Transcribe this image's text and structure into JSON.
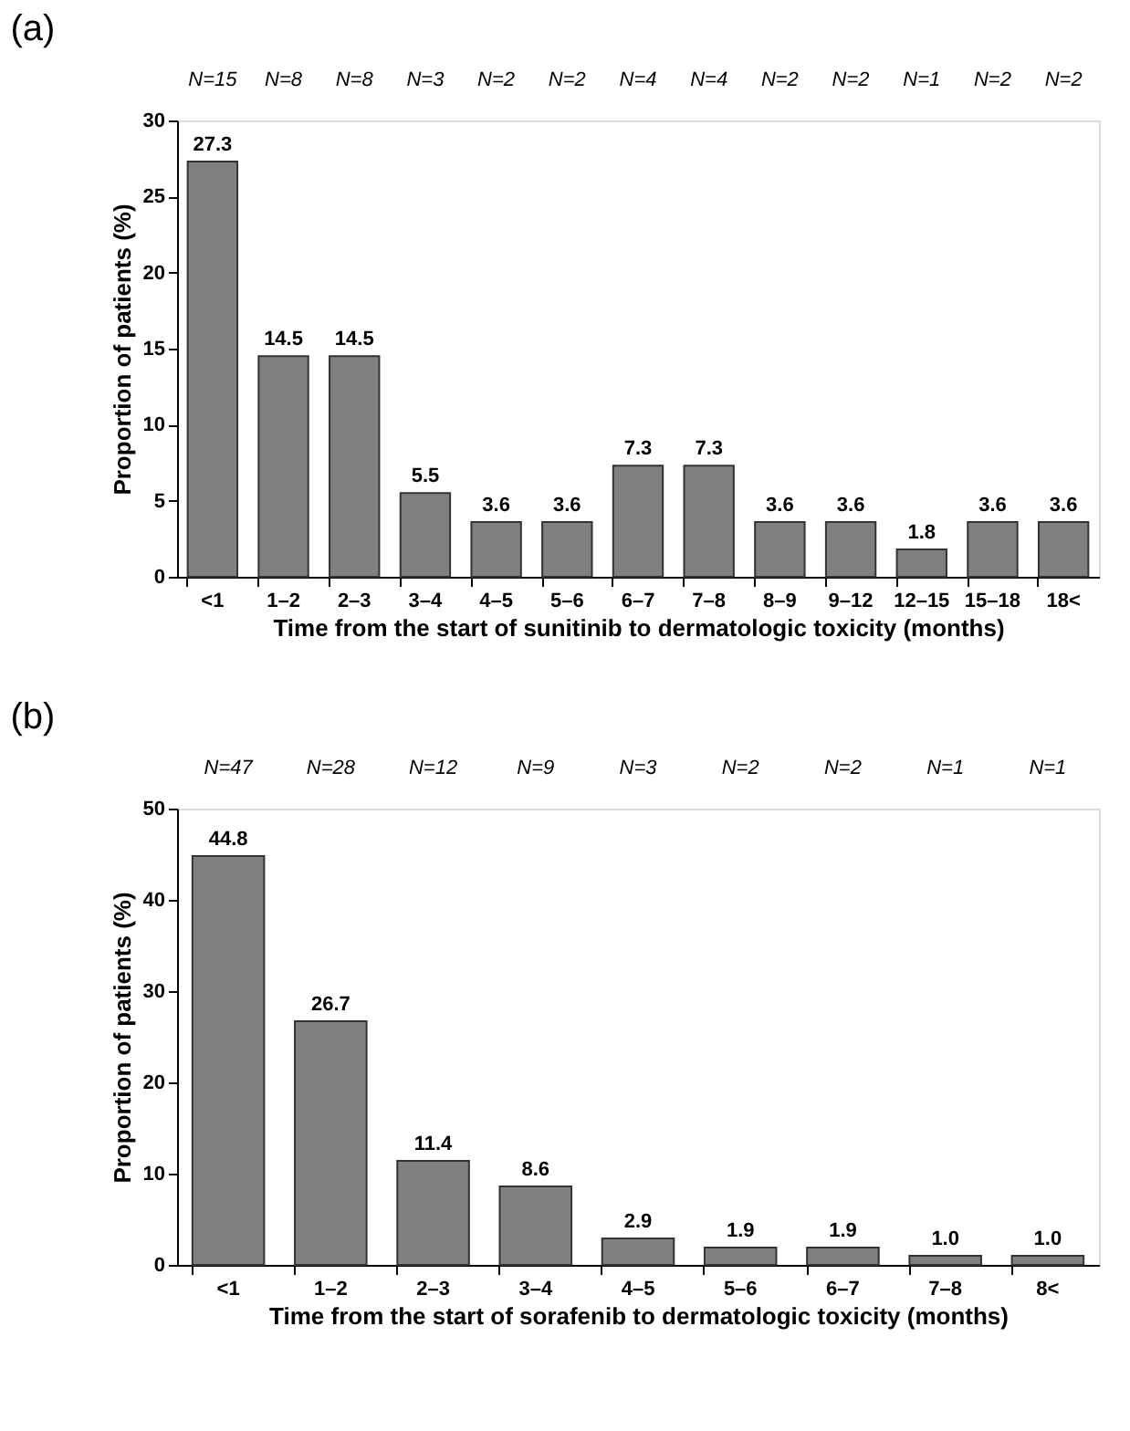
{
  "chart_data": [
    {
      "type": "bar",
      "title": "(a)",
      "xlabel": "Time from the start of sunitinib to dermatologic toxicity (months)",
      "ylabel": "Proportion of patients (%)",
      "categories": [
        "<1",
        "1–2",
        "2–3",
        "3–4",
        "4–5",
        "5–6",
        "6–7",
        "7–8",
        "8–9",
        "9–12",
        "12–15",
        "15–18",
        "18<"
      ],
      "values": [
        27.3,
        14.5,
        14.5,
        5.5,
        3.6,
        3.6,
        7.3,
        7.3,
        3.6,
        3.6,
        1.8,
        3.6,
        3.6
      ],
      "color": "#808080",
      "ylim": [
        0,
        30
      ],
      "yticks": [
        0,
        5,
        10,
        15,
        20,
        25,
        30
      ],
      "data_labels": true,
      "annotations": [
        "N=15",
        "N=8",
        "N=8",
        "N=3",
        "N=2",
        "N=2",
        "N=4",
        "N=4",
        "N=2",
        "N=2",
        "N=1",
        "N=2",
        "N=2"
      ]
    },
    {
      "type": "bar",
      "title": "(b)",
      "xlabel": "Time from the start of sorafenib to dermatologic toxicity (months)",
      "ylabel": "Proportion of patients (%)",
      "categories": [
        "<1",
        "1–2",
        "2–3",
        "3–4",
        "4–5",
        "5–6",
        "6–7",
        "7–8",
        "8<"
      ],
      "values": [
        44.8,
        26.7,
        11.4,
        8.6,
        2.9,
        1.9,
        1.9,
        1.0,
        1.0
      ],
      "color": "#808080",
      "value_labels": [
        "44.8",
        "26.7",
        "11.4",
        "8.6",
        "2.9",
        "1.9",
        "1.9",
        "1.0",
        "1.0"
      ],
      "ylim": [
        0,
        50
      ],
      "yticks": [
        0,
        10,
        20,
        30,
        40,
        50
      ],
      "annotations": [
        "N=47",
        "N=28",
        "N=12",
        "N=9",
        "N=3",
        "N=2",
        "N=2",
        "N=1",
        "N=1"
      ]
    }
  ]
}
